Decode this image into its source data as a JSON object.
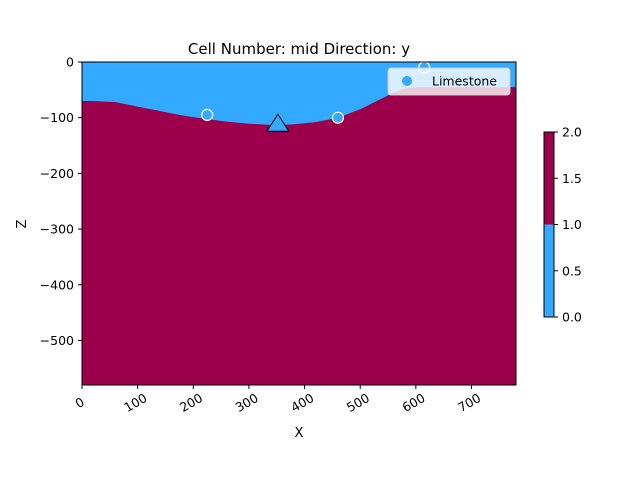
{
  "chart_data": {
    "type": "area",
    "title": "Cell Number: mid Direction: y",
    "xlabel": "X",
    "ylabel": "Z",
    "xlim": [
      0,
      780
    ],
    "ylim": [
      -580,
      0
    ],
    "x_ticks": [
      0,
      100,
      200,
      300,
      400,
      500,
      600,
      700
    ],
    "y_ticks": [
      0,
      -100,
      -200,
      -300,
      -400,
      -500
    ],
    "y_tick_labels": [
      "0",
      "−100",
      "−200",
      "−300",
      "−400",
      "−500"
    ],
    "colors": {
      "lower_unit": "#9c004b",
      "upper_unit": "#33aaff",
      "marker_edge": "#ffffff",
      "triangle_edge": "#000000"
    },
    "surface_profile": {
      "x": [
        0,
        20,
        60,
        100,
        140,
        180,
        220,
        260,
        300,
        340,
        360,
        380,
        420,
        460,
        500,
        530,
        560,
        580,
        600,
        640,
        700,
        780
      ],
      "z": [
        -70,
        -70,
        -72,
        -80,
        -88,
        -96,
        -102,
        -107,
        -111,
        -113,
        -113,
        -112,
        -108,
        -100,
        -85,
        -70,
        -55,
        -48,
        -45,
        -45,
        -45,
        -45
      ]
    },
    "series": [
      {
        "name": "Limestone",
        "x": [
          225,
          460,
          615
        ],
        "y": [
          -95,
          -100,
          -10
        ]
      }
    ],
    "triangle_marker": {
      "x": 352,
      "y": -110
    },
    "colorbar": {
      "range": [
        0,
        2
      ],
      "ticks": [
        0.0,
        0.5,
        1.0,
        1.5,
        2.0
      ],
      "tick_labels": [
        "0.0",
        "0.5",
        "1.0",
        "1.5",
        "2.0"
      ]
    },
    "legend": {
      "position": "top-right"
    },
    "grid": false
  }
}
